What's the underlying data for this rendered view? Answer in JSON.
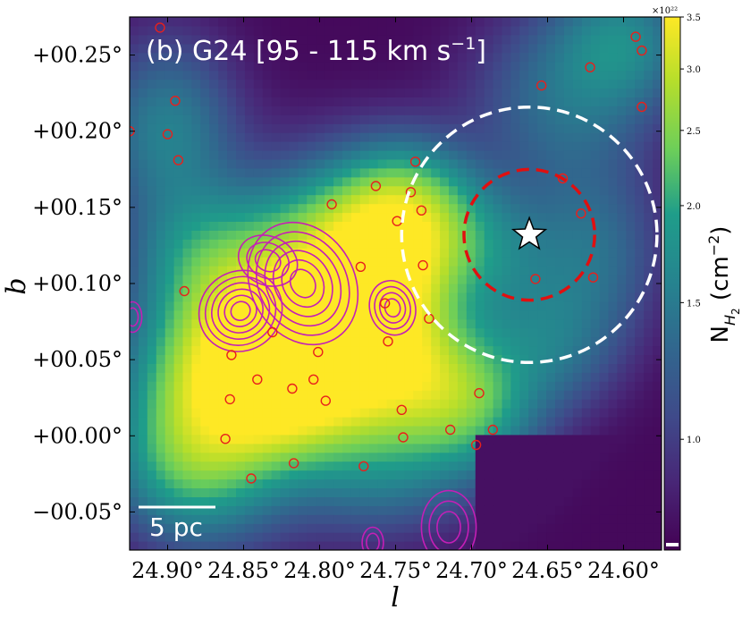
{
  "chart_data": {
    "type": "heatmap",
    "panel_title": "(b) G24 [95 - 115 km s",
    "panel_title_sup": "−1",
    "panel_title_end": "]",
    "xlabel": "l",
    "ylabel": "b",
    "xlim": [
      24.925,
      24.575
    ],
    "ylim": [
      -0.075,
      0.275
    ],
    "x_ticks": [
      24.9,
      24.85,
      24.8,
      24.75,
      24.7,
      24.65,
      24.6
    ],
    "x_tick_labels": [
      "24.90°",
      "24.85°",
      "24.80°",
      "24.75°",
      "24.70°",
      "24.65°",
      "24.60°"
    ],
    "y_ticks": [
      -0.05,
      0.0,
      0.05,
      0.1,
      0.15,
      0.2,
      0.25
    ],
    "y_tick_labels": [
      "−00.05°",
      "+00.00°",
      "+00.05°",
      "+00.10°",
      "+00.15°",
      "+00.20°",
      "+00.25°"
    ],
    "colorbar": {
      "label": "N",
      "label_sub": "H",
      "label_sub2": "2",
      "label_unit": " (cm",
      "label_unit_sup": "−2",
      "label_unit_end": ")",
      "multiplier": "×10²²",
      "ticks": [
        1.0,
        1.5,
        2.0,
        2.5,
        3.0,
        3.5
      ],
      "tick_labels": [
        "1.0",
        "1.5",
        "2.0",
        "2.5",
        "3.0",
        "3.5"
      ],
      "vmin": 0.72,
      "vmax": 3.5,
      "scale": "log",
      "colormap": "viridis"
    },
    "scale_bar": {
      "label": "5 pc",
      "length_deg": 0.05
    },
    "star": {
      "l": 24.662,
      "b": 0.132
    },
    "circles": [
      {
        "name": "inner",
        "l": 24.662,
        "b": 0.132,
        "radius_deg": 0.043,
        "color": "#e01010"
      },
      {
        "name": "outer",
        "l": 24.662,
        "b": 0.132,
        "radius_deg": 0.084,
        "color": "#ffffff"
      }
    ],
    "sources": [
      {
        "l": 24.905,
        "b": 0.268
      },
      {
        "l": 24.925,
        "b": 0.2
      },
      {
        "l": 24.895,
        "b": 0.22
      },
      {
        "l": 24.9,
        "b": 0.198
      },
      {
        "l": 24.893,
        "b": 0.181
      },
      {
        "l": 24.889,
        "b": 0.095
      },
      {
        "l": 24.858,
        "b": 0.053
      },
      {
        "l": 24.859,
        "b": 0.024
      },
      {
        "l": 24.862,
        "b": -0.002
      },
      {
        "l": 24.841,
        "b": 0.037
      },
      {
        "l": 24.845,
        "b": -0.028
      },
      {
        "l": 24.831,
        "b": 0.068
      },
      {
        "l": 24.818,
        "b": 0.031
      },
      {
        "l": 24.817,
        "b": -0.018
      },
      {
        "l": 24.804,
        "b": 0.037
      },
      {
        "l": 24.801,
        "b": 0.055
      },
      {
        "l": 24.796,
        "b": 0.023
      },
      {
        "l": 24.792,
        "b": 0.152
      },
      {
        "l": 24.773,
        "b": 0.111
      },
      {
        "l": 24.771,
        "b": -0.02
      },
      {
        "l": 24.763,
        "b": 0.164
      },
      {
        "l": 24.757,
        "b": 0.087
      },
      {
        "l": 24.755,
        "b": 0.062
      },
      {
        "l": 24.749,
        "b": 0.141
      },
      {
        "l": 24.746,
        "b": 0.017
      },
      {
        "l": 24.745,
        "b": -0.001
      },
      {
        "l": 24.74,
        "b": 0.16
      },
      {
        "l": 24.737,
        "b": 0.18
      },
      {
        "l": 24.733,
        "b": 0.148
      },
      {
        "l": 24.732,
        "b": 0.112
      },
      {
        "l": 24.728,
        "b": 0.077
      },
      {
        "l": 24.714,
        "b": 0.004
      },
      {
        "l": 24.697,
        "b": -0.006
      },
      {
        "l": 24.695,
        "b": 0.028
      },
      {
        "l": 24.686,
        "b": 0.004
      },
      {
        "l": 24.658,
        "b": 0.103
      },
      {
        "l": 24.654,
        "b": 0.23
      },
      {
        "l": 24.64,
        "b": 0.169
      },
      {
        "l": 24.628,
        "b": 0.146
      },
      {
        "l": 24.622,
        "b": 0.242
      },
      {
        "l": 24.62,
        "b": 0.104
      },
      {
        "l": 24.592,
        "b": 0.262
      },
      {
        "l": 24.588,
        "b": 0.253
      },
      {
        "l": 24.588,
        "b": 0.216
      }
    ],
    "contours": [
      {
        "l": 24.852,
        "b": 0.082,
        "rl": 0.028,
        "rb": 0.026,
        "rot": -35,
        "levels": 6
      },
      {
        "l": 24.811,
        "b": 0.1,
        "rl": 0.034,
        "rb": 0.042,
        "rot": -30,
        "levels": 6
      },
      {
        "l": 24.834,
        "b": 0.115,
        "rl": 0.02,
        "rb": 0.016,
        "rot": 25,
        "levels": 3
      },
      {
        "l": 24.752,
        "b": 0.084,
        "rl": 0.015,
        "rb": 0.018,
        "rot": -15,
        "levels": 4
      },
      {
        "l": 24.923,
        "b": 0.078,
        "rl": 0.006,
        "rb": 0.01,
        "rot": 0,
        "levels": 2
      },
      {
        "l": 24.765,
        "b": -0.07,
        "rl": 0.007,
        "rb": 0.01,
        "rot": 0,
        "levels": 2
      },
      {
        "l": 24.715,
        "b": -0.06,
        "rl": 0.018,
        "rb": 0.024,
        "rot": 0,
        "levels": 3
      }
    ],
    "intensity_components": [
      {
        "l": 24.87,
        "b": 0.02,
        "rl": 0.04,
        "rb": 0.05,
        "amp": 1.6
      },
      {
        "l": 24.84,
        "b": 0.06,
        "rl": 0.035,
        "rb": 0.04,
        "amp": 1.7
      },
      {
        "l": 24.8,
        "b": 0.1,
        "rl": 0.04,
        "rb": 0.045,
        "amp": 1.9
      },
      {
        "l": 24.76,
        "b": 0.1,
        "rl": 0.03,
        "rb": 0.04,
        "amp": 2.2
      },
      {
        "l": 24.74,
        "b": 0.145,
        "rl": 0.03,
        "rb": 0.03,
        "amp": 1.5
      },
      {
        "l": 24.82,
        "b": 0.03,
        "rl": 0.04,
        "rb": 0.03,
        "amp": 1.2
      },
      {
        "l": 24.78,
        "b": 0.04,
        "rl": 0.04,
        "rb": 0.03,
        "amp": 1.1
      },
      {
        "l": 24.73,
        "b": 0.04,
        "rl": 0.03,
        "rb": 0.03,
        "amp": 0.9
      },
      {
        "l": 24.7,
        "b": 0.02,
        "rl": 0.03,
        "rb": 0.03,
        "amp": 1.1
      },
      {
        "l": 24.69,
        "b": 0.12,
        "rl": 0.03,
        "rb": 0.03,
        "amp": 0.7
      },
      {
        "l": 24.9,
        "b": 0.2,
        "rl": 0.03,
        "rb": 0.04,
        "amp": 0.8
      },
      {
        "l": 24.64,
        "b": 0.22,
        "rl": 0.04,
        "rb": 0.04,
        "amp": 0.6
      },
      {
        "l": 24.6,
        "b": 0.26,
        "rl": 0.03,
        "rb": 0.03,
        "amp": 0.8
      },
      {
        "l": 24.62,
        "b": 0.12,
        "rl": 0.03,
        "rb": 0.04,
        "amp": 0.6
      },
      {
        "l": 24.88,
        "b": 0.12,
        "rl": 0.03,
        "rb": 0.03,
        "amp": 0.7
      },
      {
        "l": 24.89,
        "b": -0.02,
        "rl": 0.03,
        "rb": 0.03,
        "amp": 0.6
      },
      {
        "l": 24.76,
        "b": -0.02,
        "rl": 0.04,
        "rb": 0.03,
        "amp": 0.7
      },
      {
        "l": 24.65,
        "b": 0.06,
        "rl": 0.03,
        "rb": 0.03,
        "amp": 0.6
      }
    ]
  }
}
